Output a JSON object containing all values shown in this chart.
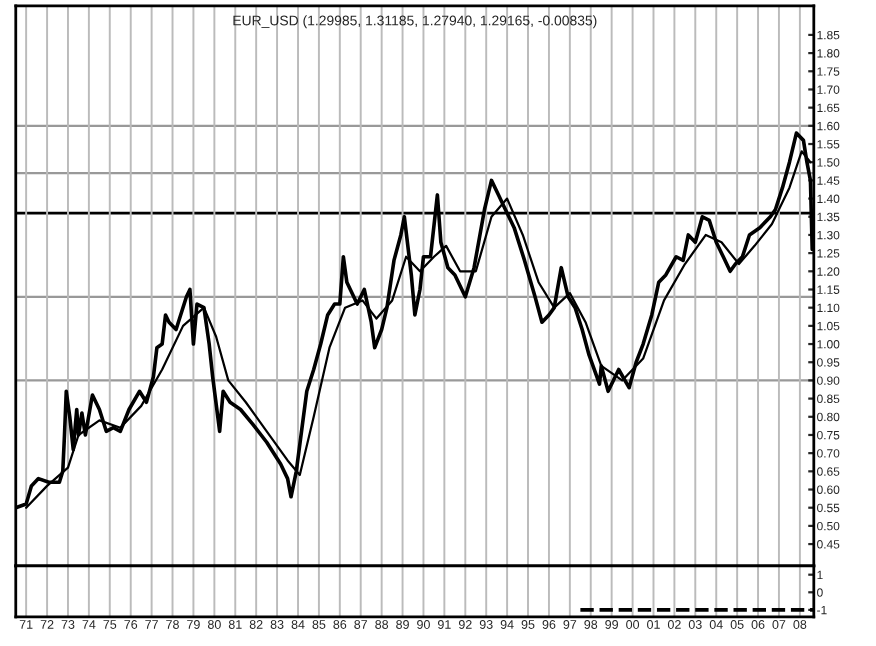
{
  "chart_data": [
    {
      "type": "line",
      "title": "EUR_USD (1.29985, 1.31185, 1.27940, 1.29165, -0.00835)",
      "legend": false,
      "grid": "x",
      "tick_labels": "y",
      "xlim": [
        "1971-01",
        "2009-03"
      ],
      "ylim": [
        0.39,
        1.93
      ],
      "yticks": [
        {
          "value": 0.45,
          "label": "0.45"
        },
        {
          "value": 0.5,
          "label": "0.50"
        },
        {
          "value": 0.55,
          "label": "0.55"
        },
        {
          "value": 0.6,
          "label": "0.60"
        },
        {
          "value": 0.65,
          "label": "0.65"
        },
        {
          "value": 0.7,
          "label": "0.70"
        },
        {
          "value": 0.75,
          "label": "0.75"
        },
        {
          "value": 0.8,
          "label": "0.80"
        },
        {
          "value": 0.85,
          "label": "0.85"
        },
        {
          "value": 0.9,
          "label": "0.90"
        },
        {
          "value": 0.95,
          "label": "0.95"
        },
        {
          "value": 1.0,
          "label": "1.00"
        },
        {
          "value": 1.05,
          "label": "1.05"
        },
        {
          "value": 1.1,
          "label": "1.10"
        },
        {
          "value": 1.15,
          "label": "1.15"
        },
        {
          "value": 1.2,
          "label": "1.20"
        },
        {
          "value": 1.25,
          "label": "1.25"
        },
        {
          "value": 1.3,
          "label": "1.30"
        },
        {
          "value": 1.35,
          "label": "1.35"
        },
        {
          "value": 1.4,
          "label": "1.40"
        },
        {
          "value": 1.45,
          "label": "1.45"
        },
        {
          "value": 1.5,
          "label": "1.50"
        },
        {
          "value": 1.55,
          "label": "1.55"
        },
        {
          "value": 1.6,
          "label": "1.60"
        },
        {
          "value": 1.65,
          "label": "1.65"
        },
        {
          "value": 1.7,
          "label": "1.70"
        },
        {
          "value": 1.75,
          "label": "1.75"
        },
        {
          "value": 1.8,
          "label": "1.80"
        },
        {
          "value": 1.85,
          "label": "1.85"
        }
      ],
      "ref_lines": [
        {
          "axis": "y",
          "value": 1.6,
          "color": "#999999"
        },
        {
          "axis": "y",
          "value": 1.47,
          "color": "#999999"
        },
        {
          "axis": "y",
          "value": 1.36,
          "color": "#000000"
        },
        {
          "axis": "y",
          "value": 1.13,
          "color": "#999999"
        },
        {
          "axis": "y",
          "value": 0.9,
          "color": "#999999"
        }
      ],
      "series": [
        {
          "color": "#000000",
          "x": [
            "1971-01",
            "1971-07",
            "1971-10",
            "1972-02",
            "1972-08",
            "1973-02",
            "1973-04",
            "1973-05",
            "1973-06",
            "1973-08",
            "1973-10",
            "1973-12",
            "1974-01",
            "1974-03",
            "1974-05",
            "1974-09",
            "1975-01",
            "1975-05",
            "1975-09",
            "1976-01",
            "1976-06",
            "1976-12",
            "1977-04",
            "1977-08",
            "1977-10",
            "1978-01",
            "1978-03",
            "1978-05",
            "1978-09",
            "1979-03",
            "1979-05",
            "1979-07",
            "1979-09",
            "1980-01",
            "1980-04",
            "1980-06",
            "1980-10",
            "1980-12",
            "1981-04",
            "1981-10",
            "1982-05",
            "1983-01",
            "1983-09",
            "1984-01",
            "1984-03",
            "1984-06",
            "1984-12",
            "1985-04",
            "1985-08",
            "1985-12",
            "1986-04",
            "1986-07",
            "1986-09",
            "1986-11",
            "1987-05",
            "1987-09",
            "1988-01",
            "1988-03",
            "1988-07",
            "1988-10",
            "1989-02",
            "1989-06",
            "1989-08",
            "1989-12",
            "1990-02",
            "1990-05",
            "1990-07",
            "1990-11",
            "1991-03",
            "1991-05",
            "1991-09",
            "1992-01",
            "1992-07",
            "1992-12",
            "1993-06",
            "1993-10",
            "1994-02",
            "1994-06",
            "1994-11",
            "1995-05",
            "1995-11",
            "1996-03",
            "1996-07",
            "1996-10",
            "1997-02",
            "1997-06",
            "1997-10",
            "1998-02",
            "1998-06",
            "1998-12",
            "1999-01",
            "1999-05",
            "1999-11",
            "2000-05",
            "2000-09",
            "2001-01",
            "2001-06",
            "2001-10",
            "2002-02",
            "2002-08",
            "2002-12",
            "2003-03",
            "2003-07",
            "2003-11",
            "2004-03",
            "2004-07",
            "2004-11",
            "2005-03",
            "2005-06",
            "2005-10",
            "2006-02",
            "2006-08",
            "2007-02",
            "2007-05",
            "2007-09",
            "2008-01",
            "2008-05",
            "2008-09",
            "2008-11",
            "2009-01",
            "2009-02"
          ],
          "values": [
            0.55,
            0.56,
            0.61,
            0.63,
            0.62,
            0.62,
            0.65,
            0.75,
            0.87,
            0.8,
            0.71,
            0.82,
            0.75,
            0.81,
            0.75,
            0.86,
            0.82,
            0.76,
            0.77,
            0.76,
            0.82,
            0.87,
            0.84,
            0.91,
            0.99,
            1.0,
            1.08,
            1.06,
            1.04,
            1.13,
            1.15,
            1.0,
            1.11,
            1.1,
            1.0,
            0.91,
            0.76,
            0.87,
            0.84,
            0.82,
            0.78,
            0.73,
            0.67,
            0.63,
            0.58,
            0.65,
            0.87,
            0.93,
            1.0,
            1.08,
            1.11,
            1.11,
            1.24,
            1.17,
            1.11,
            1.15,
            1.06,
            0.99,
            1.04,
            1.1,
            1.23,
            1.3,
            1.35,
            1.19,
            1.08,
            1.15,
            1.24,
            1.24,
            1.41,
            1.28,
            1.21,
            1.19,
            1.13,
            1.21,
            1.37,
            1.45,
            1.41,
            1.37,
            1.32,
            1.23,
            1.13,
            1.06,
            1.08,
            1.1,
            1.21,
            1.13,
            1.1,
            1.04,
            0.97,
            0.89,
            0.94,
            0.87,
            0.93,
            0.88,
            0.95,
            1.0,
            1.08,
            1.17,
            1.19,
            1.24,
            1.23,
            1.3,
            1.28,
            1.35,
            1.34,
            1.28,
            1.24,
            1.2,
            1.22,
            1.24,
            1.3,
            1.32,
            1.35,
            1.37,
            1.43,
            1.5,
            1.58,
            1.56,
            1.5,
            1.45,
            1.26
          ]
        },
        {
          "color": "#000000",
          "x": [
            "1971-07",
            "1972-07",
            "1973-07",
            "1974-01",
            "1975-01",
            "1976-01",
            "1977-01",
            "1978-01",
            "1979-01",
            "1980-01",
            "1980-08",
            "1981-03",
            "1982-01",
            "1983-01",
            "1984-01",
            "1984-08",
            "1985-04",
            "1986-01",
            "1986-10",
            "1987-08",
            "1988-04",
            "1989-01",
            "1989-09",
            "1990-05",
            "1991-01",
            "1991-08",
            "1992-04",
            "1993-01",
            "1993-10",
            "1994-07",
            "1995-04",
            "1996-01",
            "1996-10",
            "1997-07",
            "1998-04",
            "1999-01",
            "2000-01",
            "2001-01",
            "2002-01",
            "2003-01",
            "2004-01",
            "2004-10",
            "2005-08",
            "2006-05",
            "2007-03",
            "2008-01",
            "2008-08",
            "2009-01"
          ],
          "values": [
            0.55,
            0.61,
            0.66,
            0.75,
            0.79,
            0.77,
            0.83,
            0.93,
            1.05,
            1.1,
            1.02,
            0.9,
            0.84,
            0.76,
            0.68,
            0.64,
            0.8,
            0.99,
            1.1,
            1.12,
            1.07,
            1.12,
            1.24,
            1.2,
            1.24,
            1.27,
            1.2,
            1.2,
            1.35,
            1.4,
            1.3,
            1.17,
            1.1,
            1.14,
            1.06,
            0.94,
            0.9,
            0.96,
            1.12,
            1.22,
            1.3,
            1.28,
            1.22,
            1.27,
            1.33,
            1.43,
            1.53,
            1.5
          ]
        }
      ]
    },
    {
      "type": "line",
      "grid": "x",
      "legend": false,
      "xlim": [
        "1971-01",
        "2009-03"
      ],
      "ylim": [
        -1.4,
        1.5
      ],
      "yticks": [
        -1,
        0,
        1
      ],
      "xticks": [
        {
          "value": "1971-07",
          "label": "71"
        },
        {
          "value": "1972-07",
          "label": "72"
        },
        {
          "value": "1973-07",
          "label": "73"
        },
        {
          "value": "1974-07",
          "label": "74"
        },
        {
          "value": "1975-07",
          "label": "75"
        },
        {
          "value": "1976-07",
          "label": "76"
        },
        {
          "value": "1977-07",
          "label": "77"
        },
        {
          "value": "1978-07",
          "label": "78"
        },
        {
          "value": "1979-07",
          "label": "79"
        },
        {
          "value": "1980-07",
          "label": "80"
        },
        {
          "value": "1981-07",
          "label": "81"
        },
        {
          "value": "1982-07",
          "label": "82"
        },
        {
          "value": "1983-07",
          "label": "83"
        },
        {
          "value": "1984-07",
          "label": "84"
        },
        {
          "value": "1985-07",
          "label": "85"
        },
        {
          "value": "1986-07",
          "label": "86"
        },
        {
          "value": "1987-07",
          "label": "87"
        },
        {
          "value": "1988-07",
          "label": "88"
        },
        {
          "value": "1989-07",
          "label": "89"
        },
        {
          "value": "1990-07",
          "label": "90"
        },
        {
          "value": "1991-07",
          "label": "91"
        },
        {
          "value": "1992-07",
          "label": "92"
        },
        {
          "value": "1993-07",
          "label": "93"
        },
        {
          "value": "1994-07",
          "label": "94"
        },
        {
          "value": "1995-07",
          "label": "95"
        },
        {
          "value": "1996-07",
          "label": "96"
        },
        {
          "value": "1997-07",
          "label": "97"
        },
        {
          "value": "1998-07",
          "label": "98"
        },
        {
          "value": "1999-07",
          "label": "99"
        },
        {
          "value": "2000-07",
          "label": "00"
        },
        {
          "value": "2001-07",
          "label": "01"
        },
        {
          "value": "2002-07",
          "label": "02"
        },
        {
          "value": "2003-07",
          "label": "03"
        },
        {
          "value": "2004-07",
          "label": "04"
        },
        {
          "value": "2005-07",
          "label": "05"
        },
        {
          "value": "2006-07",
          "label": "06"
        },
        {
          "value": "2007-07",
          "label": "07"
        },
        {
          "value": "2008-07",
          "label": "08"
        }
      ],
      "series": [
        {
          "color": "#000000",
          "line_style": "dashed",
          "x": [
            "1998-01",
            "2009-03"
          ],
          "values": [
            -1,
            -1
          ]
        }
      ]
    }
  ]
}
